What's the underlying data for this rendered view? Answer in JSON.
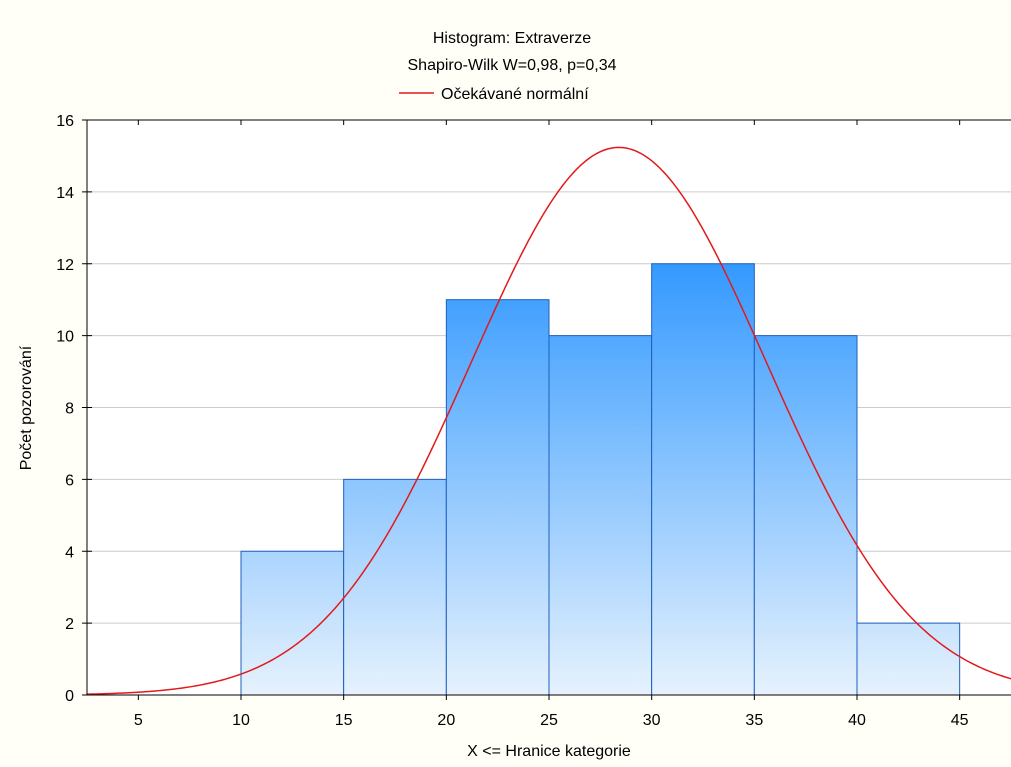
{
  "chart_data": {
    "type": "bar",
    "title": "Histogram: Extraverze",
    "subtitle": "Shapiro-Wilk W=0,98, p=0,34",
    "xlabel": "X <= Hranice kategorie",
    "ylabel": "Počet pozorování",
    "xlim": [
      2.5,
      47.5
    ],
    "ylim": [
      0,
      16
    ],
    "x_ticks": [
      5,
      10,
      15,
      20,
      25,
      30,
      35,
      40,
      45
    ],
    "y_ticks": [
      0,
      2,
      4,
      6,
      8,
      10,
      12,
      14,
      16
    ],
    "grid": "horizontal",
    "bins": [
      {
        "start": 10,
        "end": 15,
        "count": 4
      },
      {
        "start": 15,
        "end": 20,
        "count": 6
      },
      {
        "start": 20,
        "end": 25,
        "count": 11
      },
      {
        "start": 25,
        "end": 30,
        "count": 10
      },
      {
        "start": 30,
        "end": 35,
        "count": 12
      },
      {
        "start": 35,
        "end": 40,
        "count": 10
      },
      {
        "start": 40,
        "end": 45,
        "count": 2
      }
    ],
    "normal_curve": {
      "name": "Očekávané normální",
      "mean": 28.4,
      "sd": 7.2,
      "n": 55,
      "bin_width": 5,
      "color": "#e31a1c"
    },
    "legend": {
      "label": "Očekávané normální",
      "placement": "top-center"
    },
    "colors": {
      "bar_top": "#3399ff",
      "bar_bottom": "#e6f2fd",
      "bar_edge": "#1f5fbf",
      "curve": "#e31a1c",
      "background": "#fffff8",
      "plot_background": "#ffffff",
      "grid": "#cccccc"
    }
  }
}
